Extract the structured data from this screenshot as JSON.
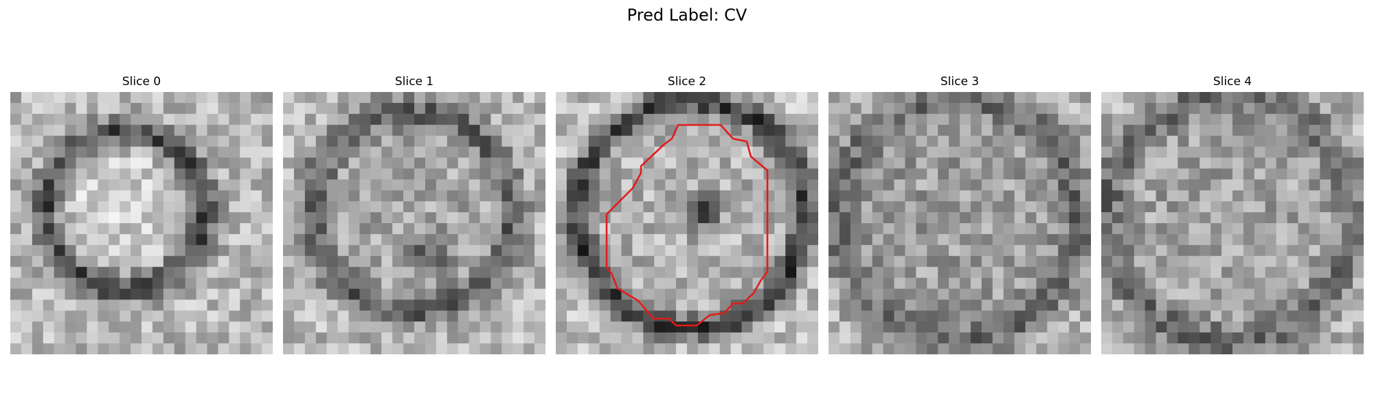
{
  "figure": {
    "title": "Pred Label: CV"
  },
  "panels": [
    {
      "label": "Slice 0",
      "has_contour": false
    },
    {
      "label": "Slice 1",
      "has_contour": false
    },
    {
      "label": "Slice 2",
      "has_contour": true
    },
    {
      "label": "Slice 3",
      "has_contour": false
    },
    {
      "label": "Slice 4",
      "has_contour": false
    }
  ],
  "colors": {
    "contour": "#e31b1b",
    "background": "#ffffff",
    "text": "#000000"
  },
  "image": {
    "colormap": "grayscale",
    "grid_cells_per_side": 24
  }
}
